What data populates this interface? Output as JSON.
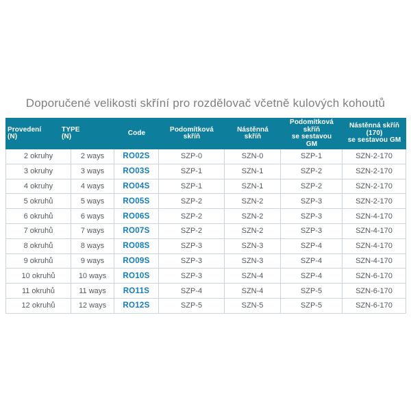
{
  "title": "Doporučené velikosti skříní pro rozdělovač včetně kulových kohoutů",
  "colors": {
    "header_bg": "#0E7E9D",
    "header_text": "#FFFFFF",
    "body_text": "#54585A",
    "code_text": "#0E7DC1",
    "border": "#C9D4DB",
    "title_text": "#7E7E7E"
  },
  "table": {
    "headers": [
      {
        "key": "provedeni-n",
        "label": "Provedení\n(N)"
      },
      {
        "key": "type-n",
        "label": "TYPE\n(N)"
      },
      {
        "key": "code",
        "label": "Code"
      },
      {
        "key": "podomitkova-skrin",
        "label": "Podomítková\nskříň"
      },
      {
        "key": "nastenna-skrin",
        "label": "Nástěnná\nskříň"
      },
      {
        "key": "podomitkova-skrin-se-sestavou-gm",
        "label": "Podomítková\nskříň\nse sestavou\nGM"
      },
      {
        "key": "nastenna-skrin-170-se-sestavou-gm",
        "label": "Nástěnná skříň\n(170)\nse sestavou GM"
      }
    ],
    "rows": [
      [
        "2 okruhy",
        "2 ways",
        "RO02S",
        "SZP-0",
        "SZN-0",
        "SZP-1",
        "SZN-2-170"
      ],
      [
        "3 okruhy",
        "3 ways",
        "RO03S",
        "SZP-1",
        "SZN-1",
        "SZP-2",
        "SZN-2-170"
      ],
      [
        "4 okruhy",
        "4 ways",
        "RO04S",
        "SZP-1",
        "SZN-1",
        "SZP-2",
        "SZN-2-170"
      ],
      [
        "5 okruhů",
        "5 ways",
        "RO05S",
        "SZP-2",
        "SZN-2",
        "SZP-3",
        "SZN-2-170"
      ],
      [
        "6 okruhů",
        "6 ways",
        "RO06S",
        "SZP-2",
        "SZN-2",
        "SZP-3",
        "SZN-4-170"
      ],
      [
        "7 okruhů",
        "7 ways",
        "RO07S",
        "SZP-2",
        "SZN-2",
        "SZP-3",
        "SZN-4-170"
      ],
      [
        "8 okruhů",
        "8 ways",
        "RO08S",
        "SZP-3",
        "SZN-3",
        "SZP-4",
        "SZN-4-170"
      ],
      [
        "9 okruhů",
        "9 ways",
        "RO09S",
        "SZP-3",
        "SZN-3",
        "SZP-4",
        "SZN-4-170"
      ],
      [
        "10 okruhů",
        "10 ways",
        "RO10S",
        "SZP-3",
        "SZN-4",
        "SZP-4",
        "SZN-6-170"
      ],
      [
        "11 okruhů",
        "11 ways",
        "RO11S",
        "SZP-4",
        "SZN-4",
        "SZP-5",
        "SZN-6-170"
      ],
      [
        "12 okruhů",
        "12 ways",
        "RO12S",
        "SZP-5",
        "SZN-5",
        "SZP-5",
        "SZN-6-170"
      ]
    ]
  }
}
